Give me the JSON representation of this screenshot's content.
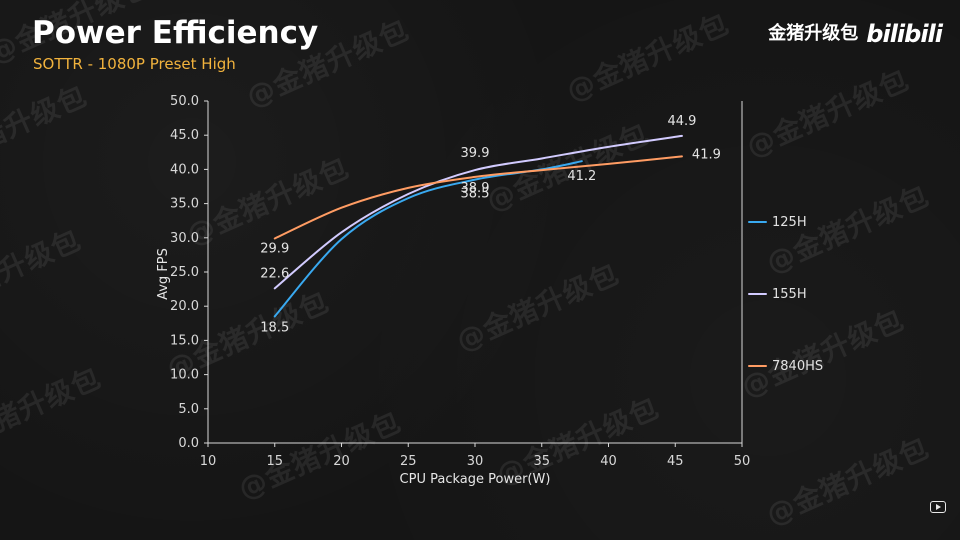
{
  "header": {
    "title": "Power Efficiency",
    "subtitle": "SOTTR - 1080P Preset High"
  },
  "brand": {
    "text": "金猪升级包",
    "logo": "bilibili"
  },
  "watermark": {
    "text": "@金猪升级包"
  },
  "icons": {
    "bottom_right": "play-icon"
  },
  "colors": {
    "background": "#151515",
    "title": "#ffffff",
    "subtitle": "#f2b33d",
    "axis": "#d9d9d9",
    "series_125H": "#39a9f0",
    "series_155H": "#d2cbff",
    "series_7840HS": "#ff9c63"
  },
  "chart_data": {
    "type": "line",
    "xlabel": "CPU Package Power(W)",
    "ylabel": "Avg FPS",
    "xlim": [
      10,
      50
    ],
    "ylim": [
      0,
      50
    ],
    "xticks": [
      10,
      15,
      20,
      25,
      30,
      35,
      40,
      45,
      50
    ],
    "yticks": [
      0.0,
      5.0,
      10.0,
      15.0,
      20.0,
      25.0,
      30.0,
      35.0,
      40.0,
      45.0,
      50.0
    ],
    "grid": false,
    "legend_position": "right",
    "series": [
      {
        "name": "125H",
        "color": "#39a9f0",
        "x": [
          15,
          20,
          25,
          30,
          35,
          38
        ],
        "y": [
          18.5,
          29.8,
          35.8,
          38.5,
          40.0,
          41.2
        ],
        "labels": [
          {
            "x": 15,
            "y": 18.5,
            "text": "18.5"
          },
          {
            "x": 30,
            "y": 38.5,
            "text": "38.5"
          },
          {
            "x": 38,
            "y": 41.2,
            "text": "41.2"
          }
        ]
      },
      {
        "name": "155H",
        "color": "#d2cbff",
        "x": [
          15,
          20,
          25,
          30,
          35,
          40,
          45.5
        ],
        "y": [
          22.6,
          30.8,
          36.4,
          39.9,
          41.6,
          43.3,
          44.9
        ],
        "labels": [
          {
            "x": 15,
            "y": 22.6,
            "text": "22.6"
          },
          {
            "x": 30,
            "y": 39.9,
            "text": "39.9"
          },
          {
            "x": 45.5,
            "y": 44.9,
            "text": "44.9"
          }
        ]
      },
      {
        "name": "7840HS",
        "color": "#ff9c63",
        "x": [
          15,
          20,
          25,
          30,
          35,
          40,
          45.5
        ],
        "y": [
          29.9,
          34.4,
          37.3,
          38.9,
          39.9,
          40.8,
          41.9
        ],
        "labels": [
          {
            "x": 15,
            "y": 29.9,
            "text": "29.9"
          },
          {
            "x": 30,
            "y": 38.9,
            "text": "38.9"
          },
          {
            "x": 45.5,
            "y": 41.9,
            "text": "41.9"
          }
        ]
      }
    ]
  }
}
